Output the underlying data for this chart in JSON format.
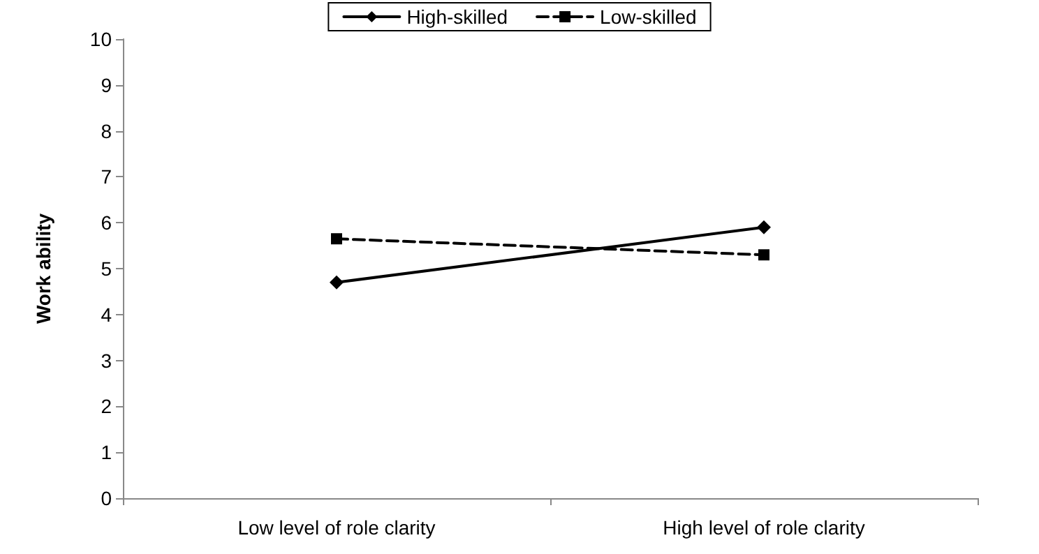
{
  "chart_data": {
    "type": "line",
    "ylabel": "Work ability",
    "categories": [
      "Low level of role clarity",
      "High level of role clarity"
    ],
    "series": [
      {
        "name": "High-skilled",
        "color": "#000000",
        "values": [
          4.7,
          5.9
        ],
        "marker": "diamond",
        "line_style": "solid"
      },
      {
        "name": "Low-skilled",
        "color": "#000000",
        "values": [
          5.65,
          5.3
        ],
        "marker": "square",
        "line_style": "dashed"
      }
    ],
    "ylim": [
      0,
      10
    ],
    "yticks": [
      0,
      1,
      2,
      3,
      4,
      5,
      6,
      7,
      8,
      9,
      10
    ],
    "grid": false,
    "legend": "top"
  }
}
